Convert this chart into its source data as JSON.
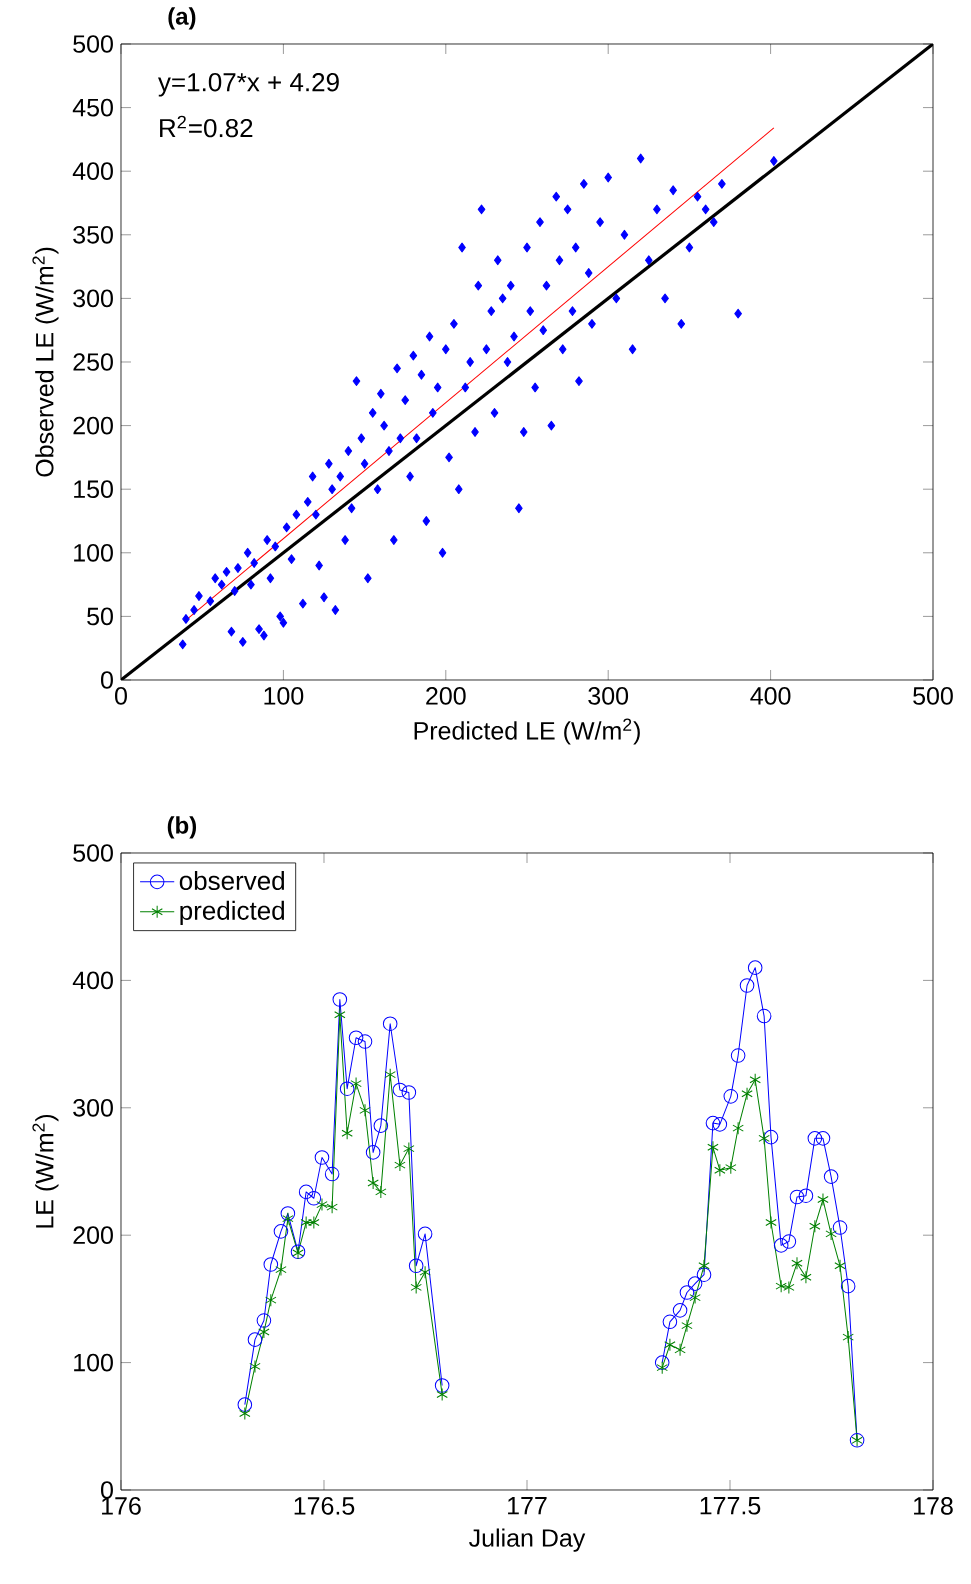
{
  "chart_data": [
    {
      "type": "scatter",
      "title": "(a)",
      "xlabel": "Predicted LE (W/m$^{2}$)",
      "ylabel": "Observed LE (W/m$^{2}$)",
      "xlim": [
        0,
        500
      ],
      "ylim": [
        0,
        500
      ],
      "xticks": [
        0,
        100,
        200,
        300,
        400,
        500
      ],
      "yticks": [
        0,
        50,
        100,
        150,
        200,
        250,
        300,
        350,
        400,
        450,
        500
      ],
      "annotations": [
        "y=1.07*x + 4.29",
        "R$^{2}$=0.82"
      ],
      "series": [
        {
          "type": "scatter",
          "marker": "diamond",
          "color": "#0000ff",
          "x": [
            38,
            40,
            45,
            48,
            55,
            58,
            62,
            65,
            68,
            70,
            72,
            75,
            78,
            80,
            82,
            85,
            88,
            90,
            92,
            95,
            98,
            100,
            102,
            105,
            108,
            112,
            115,
            118,
            120,
            122,
            125,
            128,
            130,
            132,
            135,
            138,
            140,
            142,
            145,
            148,
            150,
            152,
            155,
            158,
            160,
            162,
            165,
            168,
            170,
            172,
            175,
            178,
            180,
            182,
            185,
            188,
            190,
            192,
            195,
            198,
            200,
            202,
            205,
            208,
            210,
            212,
            215,
            218,
            220,
            222,
            225,
            228,
            230,
            232,
            235,
            238,
            240,
            242,
            245,
            248,
            250,
            252,
            255,
            258,
            260,
            262,
            265,
            268,
            270,
            272,
            275,
            278,
            280,
            282,
            285,
            288,
            290,
            295,
            300,
            305,
            310,
            315,
            320,
            325,
            330,
            335,
            340,
            345,
            350,
            355,
            360,
            365,
            370,
            380,
            402
          ],
          "values": [
            28,
            48,
            55,
            66,
            62,
            80,
            75,
            85,
            38,
            70,
            88,
            30,
            100,
            75,
            92,
            40,
            35,
            110,
            80,
            105,
            50,
            45,
            120,
            95,
            130,
            60,
            140,
            160,
            130,
            90,
            65,
            170,
            150,
            55,
            160,
            110,
            180,
            135,
            235,
            190,
            170,
            80,
            210,
            150,
            225,
            200,
            180,
            110,
            245,
            190,
            220,
            160,
            255,
            190,
            240,
            125,
            270,
            210,
            230,
            100,
            260,
            175,
            280,
            150,
            340,
            230,
            250,
            195,
            310,
            370,
            260,
            290,
            210,
            330,
            300,
            250,
            310,
            270,
            135,
            195,
            340,
            290,
            230,
            360,
            275,
            310,
            200,
            380,
            330,
            260,
            370,
            290,
            340,
            235,
            390,
            320,
            280,
            360,
            395,
            300,
            350,
            260,
            410,
            330,
            370,
            300,
            385,
            280,
            340,
            380,
            370,
            360,
            390,
            288,
            408
          ]
        },
        {
          "type": "line",
          "marker": "none",
          "color": "#000000",
          "x": [
            0,
            500
          ],
          "values": [
            0,
            500
          ]
        },
        {
          "type": "line",
          "marker": "none",
          "color": "#ff0000",
          "x": [
            40,
            402
          ],
          "values": [
            47,
            434
          ]
        }
      ]
    },
    {
      "type": "line",
      "title": "(b)",
      "xlabel": "Julian Day",
      "ylabel": "LE (W/m$^{2}$)",
      "xlim": [
        176,
        178
      ],
      "ylim": [
        0,
        500
      ],
      "xticks": [
        176,
        176.5,
        177,
        177.5,
        178
      ],
      "yticks": [
        0,
        100,
        200,
        300,
        400,
        500
      ],
      "legend": "top left",
      "x": [
        176.305,
        176.33,
        176.352,
        176.369,
        176.394,
        176.411,
        176.436,
        176.456,
        176.475,
        176.495,
        176.52,
        176.539,
        176.557,
        176.579,
        176.601,
        176.621,
        176.64,
        176.663,
        176.687,
        176.709,
        176.727,
        176.749,
        176.791,
        177.0,
        177.333,
        177.352,
        177.377,
        177.394,
        177.414,
        177.436,
        177.458,
        177.475,
        177.502,
        177.52,
        177.542,
        177.562,
        177.584,
        177.601,
        177.626,
        177.645,
        177.665,
        177.687,
        177.709,
        177.729,
        177.749,
        177.771,
        177.791,
        177.813
      ],
      "series": [
        {
          "name": "observed",
          "marker": "circle",
          "color": "#0000ff",
          "values": [
            67,
            118,
            133,
            177,
            203,
            217,
            187,
            234,
            229,
            261,
            248,
            385,
            315,
            355,
            352,
            265,
            286,
            366,
            314,
            312,
            176,
            201,
            82,
            null,
            100,
            132,
            141,
            155,
            162,
            169,
            288,
            287,
            309,
            341,
            396,
            410,
            372,
            277,
            192,
            195,
            230,
            231,
            276,
            276,
            246,
            206,
            160,
            39
          ]
        },
        {
          "name": "predicted",
          "marker": "cross",
          "color": "#008000",
          "values": [
            60,
            97,
            124,
            149,
            173,
            213,
            186,
            210,
            210,
            224,
            222,
            373,
            280,
            319,
            298,
            241,
            234,
            326,
            255,
            268,
            159,
            171,
            75,
            null,
            96,
            114,
            110,
            129,
            151,
            176,
            269,
            251,
            253,
            284,
            311,
            322,
            276,
            210,
            160,
            159,
            178,
            167,
            207,
            228,
            201,
            176,
            120,
            39
          ]
        }
      ]
    }
  ]
}
